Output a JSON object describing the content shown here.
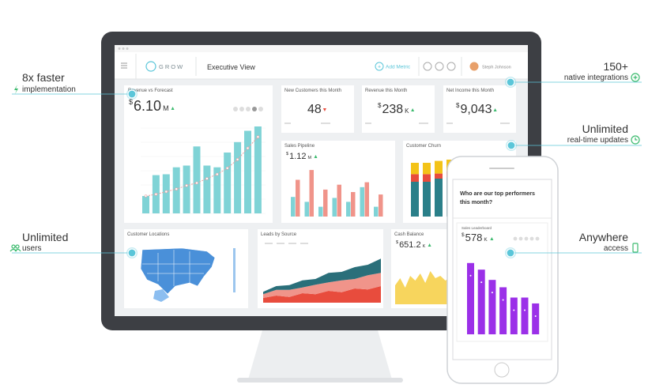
{
  "callouts": {
    "left": [
      {
        "title": "8x faster",
        "subtitle": "implementation"
      },
      {
        "title": "Unlimited",
        "subtitle": "users"
      }
    ],
    "right": [
      {
        "title": "150+",
        "subtitle": "native integrations"
      },
      {
        "title": "Unlimited",
        "subtitle": "real-time updates"
      },
      {
        "title": "Anywhere",
        "subtitle": "access"
      }
    ]
  },
  "app": {
    "logo": "GROW",
    "view_title": "Executive View",
    "add_metric": "Add Metric",
    "user_name": "Steph Johnson"
  },
  "widgets": {
    "revenue_vs_forecast": {
      "title": "Revenue vs Forecast",
      "currency": "$",
      "value": "6.10",
      "unit": "M",
      "bar_color": "#7fd3d6",
      "line_color": "#e9a0a0",
      "bars": [
        20,
        44,
        45,
        53,
        55,
        77,
        55,
        53,
        70,
        82,
        95,
        100
      ],
      "forecast": [
        20,
        22,
        25,
        28,
        32,
        35,
        40,
        45,
        52,
        62,
        75,
        88
      ]
    },
    "new_customers": {
      "title": "New Customers this Month",
      "value": "48"
    },
    "revenue_month": {
      "title": "Revenue this Month",
      "currency": "$",
      "value": "238",
      "unit": "K"
    },
    "net_income": {
      "title": "Net Income this Month",
      "currency": "$",
      "value": "9,043"
    },
    "sales_pipeline": {
      "title": "Sales Pipeline",
      "currency": "$",
      "value": "1.12",
      "unit": "M",
      "series": [
        {
          "color": "#7fd3d6",
          "values": [
            40,
            30,
            20,
            38,
            30,
            60,
            20
          ]
        },
        {
          "color": "#f0948a",
          "values": [
            75,
            95,
            55,
            65,
            50,
            70,
            45
          ]
        }
      ]
    },
    "customer_churn": {
      "title": "Customer Churn",
      "series": [
        {
          "color": "#2a7f89",
          "values": [
            55,
            55,
            60,
            62
          ]
        },
        {
          "color": "#e84c3d",
          "values": [
            12,
            12,
            8,
            10
          ]
        },
        {
          "color": "#f3c318",
          "values": [
            18,
            18,
            20,
            18
          ]
        }
      ]
    },
    "customer_locations": {
      "title": "Customer Locations"
    },
    "leads_by_source": {
      "title": "Leads by Source",
      "series": [
        {
          "color": "#e84c3d",
          "values": [
            10,
            15,
            12,
            20,
            18,
            25,
            22,
            30,
            28,
            35
          ]
        },
        {
          "color": "#f0948a",
          "values": [
            8,
            12,
            15,
            12,
            20,
            18,
            25,
            20,
            30,
            28
          ]
        },
        {
          "color": "#2a6f7a",
          "values": [
            5,
            8,
            10,
            15,
            12,
            20,
            18,
            25,
            22,
            30
          ]
        }
      ]
    },
    "cash_balance": {
      "title": "Cash Balance",
      "currency": "$",
      "value": "651.2",
      "unit": "K",
      "color": "#f3c318",
      "values": [
        40,
        55,
        35,
        60,
        50,
        65,
        45,
        70,
        55,
        60,
        50,
        58
      ]
    }
  },
  "phone": {
    "question": [
      "Who are our top performers",
      "this month?"
    ],
    "widget_title": "Sales Leaderboard",
    "currency": "$",
    "value": "578",
    "unit": "K",
    "color": "#9b30e8",
    "bars": [
      97,
      88,
      74,
      64,
      50,
      50,
      42
    ]
  }
}
